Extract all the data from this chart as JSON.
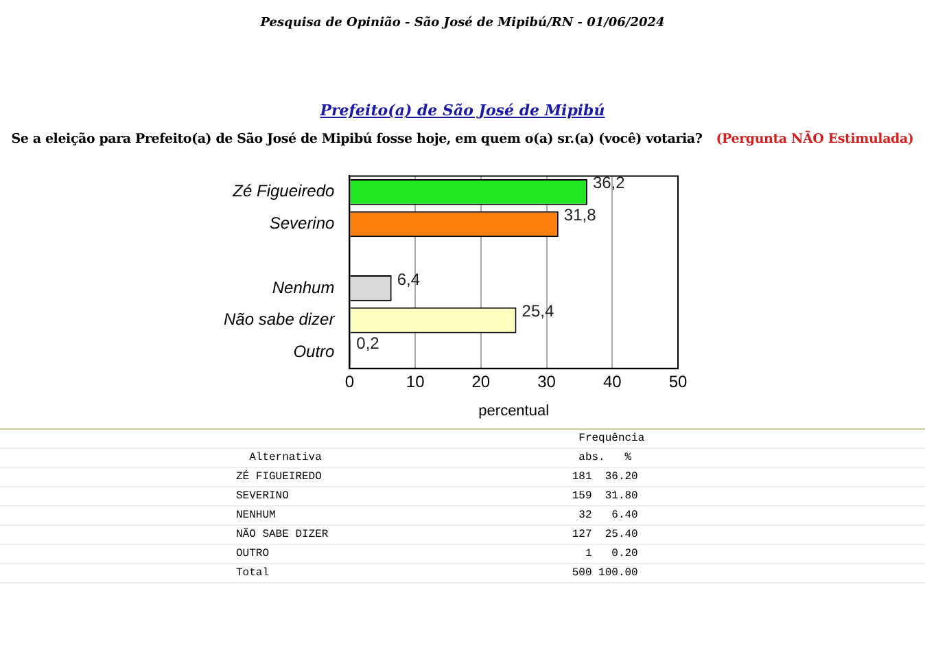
{
  "chart_data": {
    "type": "bar",
    "orientation": "horizontal",
    "title": "Pesquisa de Opinião  -  São José de Mipibú/RN  -  01/06/2024",
    "subtitle": "Prefeito(a) de São José de Mipibú",
    "xlabel": "percentual",
    "categories": [
      "Zé Figueiredo",
      "Severino",
      null,
      "Nenhum",
      "Não sabe dizer",
      "Outro"
    ],
    "values": [
      36.2,
      31.8,
      null,
      6.4,
      25.4,
      0.2
    ],
    "colors": [
      "#22e822",
      "#ff7f0e",
      "#ffffff",
      "#d9d9d9",
      "#ffffc0",
      "#333333"
    ],
    "value_labels": [
      "36,2",
      "31,8",
      null,
      "6,4",
      "25,4",
      "0,2"
    ],
    "xlim": [
      0,
      50
    ],
    "xticks": [
      0,
      10,
      20,
      30,
      40,
      50
    ],
    "grid": "x",
    "legend": false,
    "annotations": [
      "Se a eleição para Prefeito(a) de São José de Mipibú fosse hoje, em quem o(a) sr.(a) (você) votaria?",
      "(Pergunta NÃO Estimulada)",
      "                                                    Frequência",
      "  Alternativa                                       abs.   %",
      "ZÉ FIGUEIREDO                                      181  36.20",
      "SEVERINO                                           159  31.80",
      "NENHUM                                              32   6.40",
      "NÃO SABE DIZER                                     127  25.40",
      "OUTRO                                                1   0.20",
      "Total                                              500 100.00"
    ]
  }
}
